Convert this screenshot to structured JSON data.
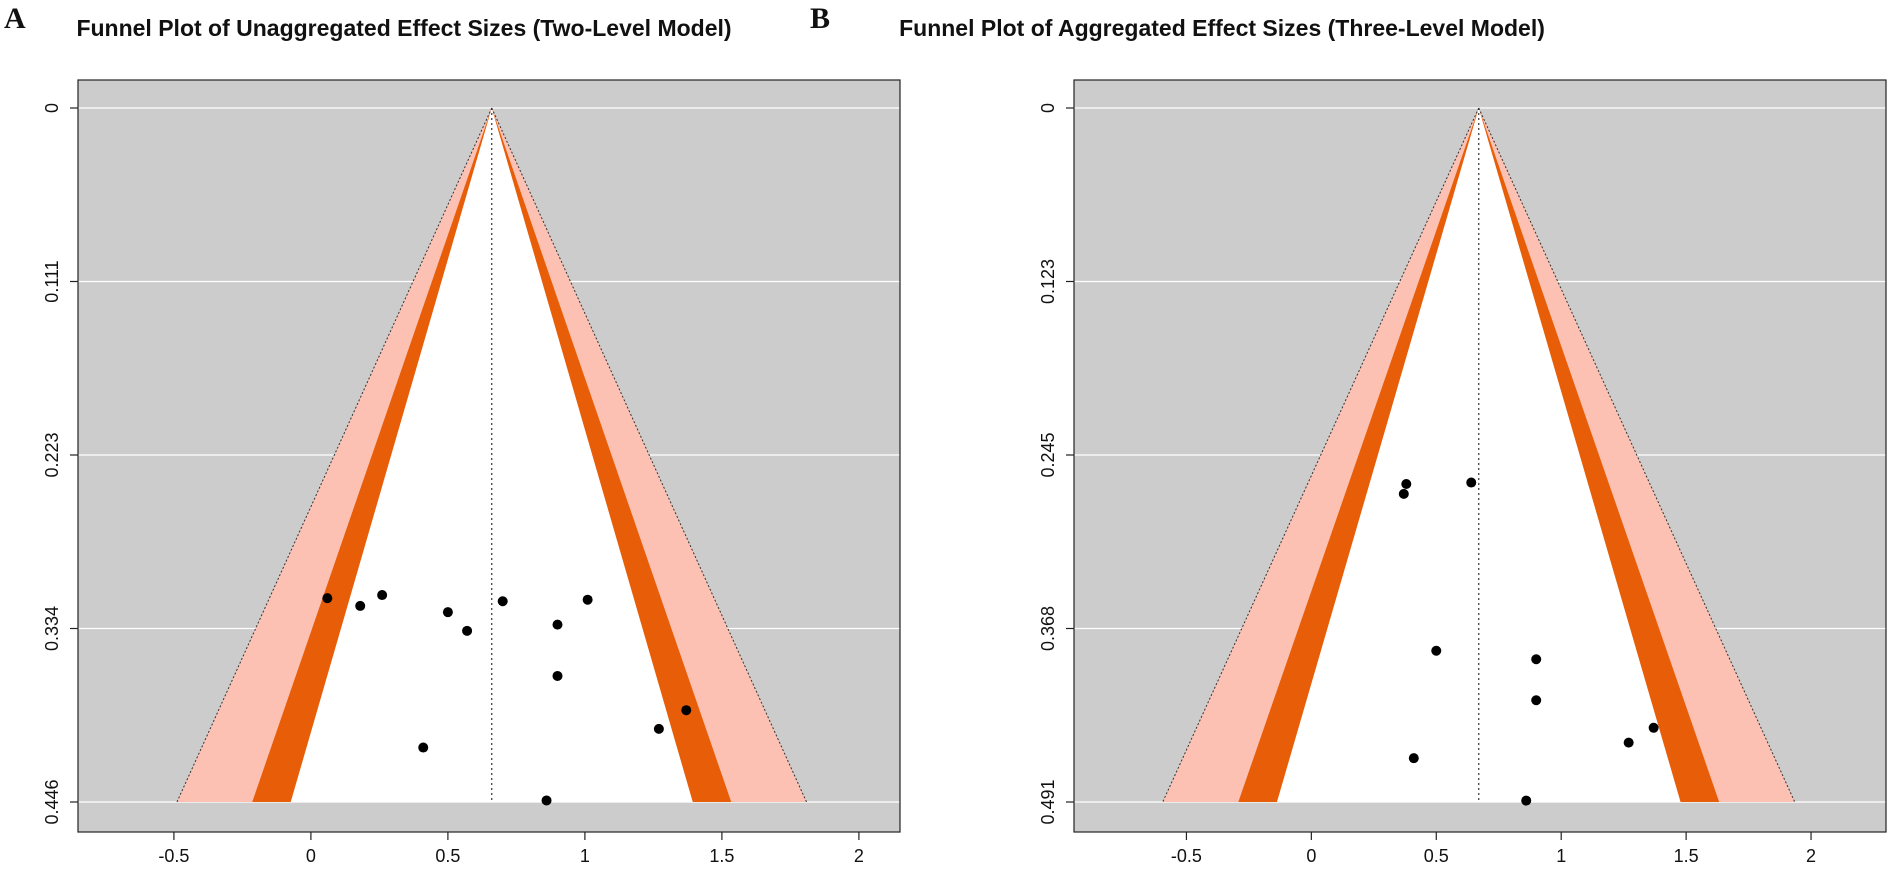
{
  "panels": [
    {
      "letter": "A",
      "title": "Funnel Plot of Unaggregated Effect Sizes (Two-Level Model)"
    },
    {
      "letter": "B",
      "title": "Funnel Plot of Aggregated Effect Sizes (Three-Level Model)"
    }
  ],
  "colors": {
    "background": "#cccccc",
    "funnel_inner": "#ffffff",
    "band_dark": "#e85e08",
    "band_light": "#fdc1b3",
    "grid": "#ffffff",
    "points": "#000000"
  },
  "chart_data": [
    {
      "type": "scatter",
      "subtype": "contour-enhanced funnel plot",
      "title": "Funnel Plot of Unaggregated Effect Sizes (Two-Level Model)",
      "xlabel": "",
      "ylabel": "",
      "xlim": [
        -0.85,
        2.15
      ],
      "ylim": [
        0.446,
        0
      ],
      "y_reversed": true,
      "x_ticks": [
        -0.5,
        0,
        0.5,
        1,
        1.5,
        2
      ],
      "x_tick_labels": [
        "-0.5",
        "0",
        "0.5",
        "1",
        "1.5",
        "2"
      ],
      "y_ticks": [
        0,
        0.1115,
        0.223,
        0.3345,
        0.446
      ],
      "y_tick_labels": [
        "0",
        "0.111",
        "0.223",
        "0.334",
        "0.446"
      ],
      "grid": true,
      "center": 0.66,
      "contour_z": [
        1.645,
        1.96,
        2.576
      ],
      "points": [
        {
          "x": 0.06,
          "y": 0.315
        },
        {
          "x": 0.18,
          "y": 0.32
        },
        {
          "x": 0.26,
          "y": 0.313
        },
        {
          "x": 0.5,
          "y": 0.324
        },
        {
          "x": 0.57,
          "y": 0.336
        },
        {
          "x": 0.7,
          "y": 0.317
        },
        {
          "x": 0.9,
          "y": 0.332
        },
        {
          "x": 1.01,
          "y": 0.316
        },
        {
          "x": 0.9,
          "y": 0.365
        },
        {
          "x": 1.37,
          "y": 0.387
        },
        {
          "x": 1.27,
          "y": 0.399
        },
        {
          "x": 0.41,
          "y": 0.411
        },
        {
          "x": 0.86,
          "y": 0.445
        }
      ]
    },
    {
      "type": "scatter",
      "subtype": "contour-enhanced funnel plot",
      "title": "Funnel Plot of Aggregated Effect Sizes (Three-Level Model)",
      "xlabel": "",
      "ylabel": "",
      "xlim": [
        -0.95,
        2.3
      ],
      "ylim": [
        0.491,
        0
      ],
      "y_reversed": true,
      "x_ticks": [
        -0.5,
        0,
        0.5,
        1,
        1.5,
        2
      ],
      "x_tick_labels": [
        "-0.5",
        "0",
        "0.5",
        "1",
        "1.5",
        "2"
      ],
      "y_ticks": [
        0,
        0.12275,
        0.2455,
        0.36825,
        0.491
      ],
      "y_tick_labels": [
        "0",
        "0.123",
        "0.245",
        "0.368",
        "0.491"
      ],
      "grid": true,
      "center": 0.67,
      "contour_z": [
        1.645,
        1.96,
        2.576
      ],
      "points": [
        {
          "x": 0.38,
          "y": 0.266
        },
        {
          "x": 0.37,
          "y": 0.273
        },
        {
          "x": 0.64,
          "y": 0.265
        },
        {
          "x": 0.5,
          "y": 0.384
        },
        {
          "x": 0.9,
          "y": 0.39
        },
        {
          "x": 0.9,
          "y": 0.419
        },
        {
          "x": 1.37,
          "y": 0.4385
        },
        {
          "x": 1.27,
          "y": 0.449
        },
        {
          "x": 0.41,
          "y": 0.46
        },
        {
          "x": 0.86,
          "y": 0.49
        }
      ]
    }
  ]
}
